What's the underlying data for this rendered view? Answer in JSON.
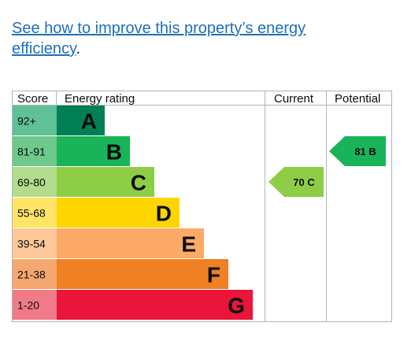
{
  "link": {
    "text_line1": "See how to improve this property’s energy",
    "text_line2": "efficiency",
    "trailing": "."
  },
  "chart_data": {
    "type": "table",
    "columns": [
      "Score",
      "Energy rating",
      "Current",
      "Potential"
    ],
    "bands": [
      {
        "score": "92+",
        "letter": "A",
        "color": "#008054",
        "score_bg": "#5fc198"
      },
      {
        "score": "81-91",
        "letter": "B",
        "color": "#19b459",
        "score_bg": "#6fc98c"
      },
      {
        "score": "69-80",
        "letter": "C",
        "color": "#8dce46",
        "score_bg": "#b3dd8c"
      },
      {
        "score": "55-68",
        "letter": "D",
        "color": "#ffd500",
        "score_bg": "#ffe466"
      },
      {
        "score": "39-54",
        "letter": "E",
        "color": "#fcaa65",
        "score_bg": "#fdc797"
      },
      {
        "score": "21-38",
        "letter": "F",
        "color": "#ef8023",
        "score_bg": "#f4a870"
      },
      {
        "score": "1-20",
        "letter": "G",
        "color": "#e9153b",
        "score_bg": "#f07a89"
      }
    ],
    "current": {
      "value": 70,
      "letter": "C",
      "label": "70  C",
      "color": "#8dce46"
    },
    "potential": {
      "value": 81,
      "letter": "B",
      "label": "81  B",
      "color": "#19b459"
    }
  }
}
